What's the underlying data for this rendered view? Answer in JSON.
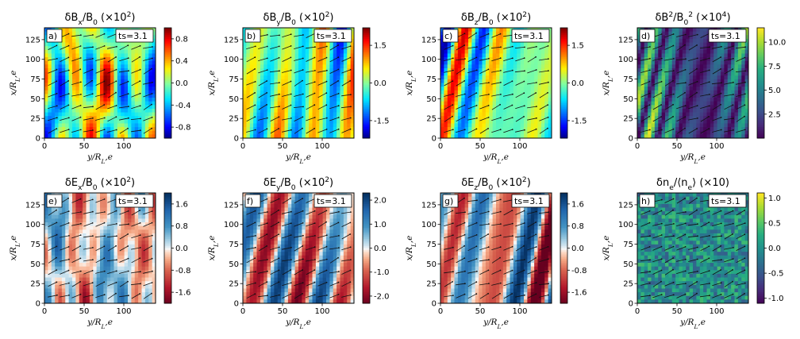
{
  "chart_data": [
    {
      "type": "heatmap",
      "panel_label": "a)",
      "title": "δB_x/B_0 (×10^2)",
      "timestep": "ts=3.1",
      "xlabel": "y/R_L,e",
      "ylabel": "x/R_L,e",
      "xticks": [
        0,
        50,
        100
      ],
      "yticks": [
        0,
        25,
        50,
        75,
        100,
        125
      ],
      "xlim": [
        0,
        140
      ],
      "ylim": [
        0,
        140
      ],
      "colormap": "jet",
      "colorbar_ticks": [
        "0.8",
        "0.4",
        "0.0",
        "-0.4",
        "-0.8"
      ],
      "colorbar_range": [
        -1.0,
        1.0
      ]
    },
    {
      "type": "heatmap",
      "panel_label": "b)",
      "title": "δB_y/B_0 (×10^2)",
      "timestep": "ts=3.1",
      "xlabel": "y/R_L,e",
      "ylabel": "x/R_L,e",
      "xticks": [
        0,
        50,
        100
      ],
      "yticks": [
        0,
        25,
        50,
        75,
        100,
        125
      ],
      "xlim": [
        0,
        140
      ],
      "ylim": [
        0,
        140
      ],
      "colormap": "jet",
      "colorbar_ticks": [
        "1.5",
        "0.0",
        "-1.5"
      ],
      "colorbar_range": [
        -2.2,
        2.2
      ]
    },
    {
      "type": "heatmap",
      "panel_label": "c)",
      "title": "δB_z/B_0 (×10^2)",
      "timestep": "ts=3.1",
      "xlabel": "y/R_L,e",
      "ylabel": "x/R_L,e",
      "xticks": [
        0,
        50,
        100
      ],
      "yticks": [
        0,
        25,
        50,
        75,
        100,
        125
      ],
      "xlim": [
        0,
        140
      ],
      "ylim": [
        0,
        140
      ],
      "colormap": "jet",
      "colorbar_ticks": [
        "1.5",
        "0.0",
        "-1.5"
      ],
      "colorbar_range": [
        -2.2,
        2.2
      ]
    },
    {
      "type": "heatmap",
      "panel_label": "d)",
      "title": "δB^2/B_0^2 (×10^4)",
      "timestep": "ts=3.1",
      "xlabel": "y/R_L,e",
      "ylabel": "x/R_L,e",
      "xticks": [
        0,
        50,
        100
      ],
      "yticks": [
        0,
        25,
        50,
        75,
        100,
        125
      ],
      "xlim": [
        0,
        140
      ],
      "ylim": [
        0,
        140
      ],
      "colormap": "viridis",
      "colorbar_ticks": [
        "10.0",
        "7.5",
        "5.0",
        "2.5"
      ],
      "colorbar_range": [
        0,
        11.5
      ]
    },
    {
      "type": "heatmap",
      "panel_label": "e)",
      "title": "δE_x/B_0 (×10^2)",
      "timestep": "ts=3.1",
      "xlabel": "y/R_L,e",
      "ylabel": "x/R_L,e",
      "xticks": [
        0,
        50,
        100
      ],
      "yticks": [
        0,
        25,
        50,
        75,
        100,
        125
      ],
      "xlim": [
        0,
        140
      ],
      "ylim": [
        0,
        140
      ],
      "colormap": "RdBu",
      "colorbar_ticks": [
        "1.6",
        "0.8",
        "0.0",
        "-0.8",
        "-1.6"
      ],
      "colorbar_range": [
        -2.0,
        2.0
      ]
    },
    {
      "type": "heatmap",
      "panel_label": "f)",
      "title": "δE_y/B_0 (×10^2)",
      "timestep": "ts=3.1",
      "xlabel": "y/R_L,e",
      "ylabel": "x/R_L,e",
      "xticks": [
        0,
        50,
        100
      ],
      "yticks": [
        0,
        25,
        50,
        75,
        100,
        125
      ],
      "xlim": [
        0,
        140
      ],
      "ylim": [
        0,
        140
      ],
      "colormap": "RdBu",
      "colorbar_ticks": [
        "2.0",
        "1.0",
        "0.0",
        "-1.0",
        "-2.0"
      ],
      "colorbar_range": [
        -2.3,
        2.3
      ]
    },
    {
      "type": "heatmap",
      "panel_label": "g)",
      "title": "δE_z/B_0 (×10^2)",
      "timestep": "ts=3.1",
      "xlabel": "y/R_L,e",
      "ylabel": "x/R_L,e",
      "xticks": [
        0,
        50,
        100
      ],
      "yticks": [
        0,
        25,
        50,
        75,
        100,
        125
      ],
      "xlim": [
        0,
        140
      ],
      "ylim": [
        0,
        140
      ],
      "colormap": "RdBu",
      "colorbar_ticks": [
        "1.6",
        "0.8",
        "0.0",
        "-0.8",
        "-1.6"
      ],
      "colorbar_range": [
        -2.0,
        2.0
      ]
    },
    {
      "type": "heatmap",
      "panel_label": "h)",
      "title": "δn_e/⟨n_e⟩ (×10)",
      "timestep": "ts=3.1",
      "xlabel": "y/R_L,e",
      "ylabel": "x/R_L,e",
      "xticks": [
        0,
        50,
        100
      ],
      "yticks": [
        0,
        25,
        50,
        75,
        100,
        125
      ],
      "xlim": [
        0,
        140
      ],
      "ylim": [
        0,
        140
      ],
      "colormap": "viridis",
      "colorbar_ticks": [
        "1.0",
        "0.5",
        "0.0",
        "-0.5",
        "-1.0"
      ],
      "colorbar_range": [
        -1.1,
        1.1
      ]
    }
  ]
}
